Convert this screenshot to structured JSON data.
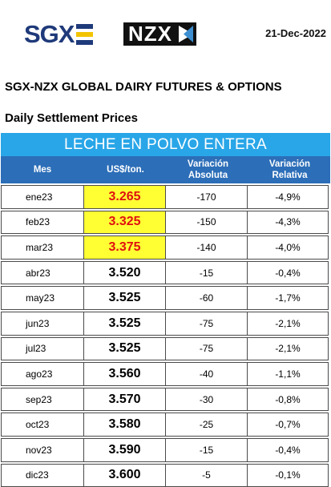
{
  "header": {
    "sgx_logo": "SGX",
    "nzx_logo": "NZX",
    "date": "21-Dec-2022"
  },
  "title": "SGX-NZX GLOBAL DAIRY FUTURES & OPTIONS",
  "subtitle": "Daily Settlement Prices",
  "table": {
    "banner": "LECHE EN POLVO ENTERA",
    "columns": {
      "mes": "Mes",
      "precio": "US$/ton.",
      "var_abs_1": "Variación",
      "var_abs_2": "Absoluta",
      "var_rel_1": "Variación",
      "var_rel_2": "Relativa"
    },
    "highlight_color": "#ffff33",
    "highlight_text_color": "#e01010",
    "rows": [
      {
        "mes": "ene23",
        "precio": "3.265",
        "abs": "-170",
        "rel": "-4,9%",
        "highlight": true
      },
      {
        "mes": "feb23",
        "precio": "3.325",
        "abs": "-150",
        "rel": "-4,3%",
        "highlight": true
      },
      {
        "mes": "mar23",
        "precio": "3.375",
        "abs": "-140",
        "rel": "-4,0%",
        "highlight": true
      },
      {
        "mes": "abr23",
        "precio": "3.520",
        "abs": "-15",
        "rel": "-0,4%",
        "highlight": false
      },
      {
        "mes": "may23",
        "precio": "3.525",
        "abs": "-60",
        "rel": "-1,7%",
        "highlight": false
      },
      {
        "mes": "jun23",
        "precio": "3.525",
        "abs": "-75",
        "rel": "-2,1%",
        "highlight": false
      },
      {
        "mes": "jul23",
        "precio": "3.525",
        "abs": "-75",
        "rel": "-2,1%",
        "highlight": false
      },
      {
        "mes": "ago23",
        "precio": "3.560",
        "abs": "-40",
        "rel": "-1,1%",
        "highlight": false
      },
      {
        "mes": "sep23",
        "precio": "3.570",
        "abs": "-30",
        "rel": "-0,8%",
        "highlight": false
      },
      {
        "mes": "oct23",
        "precio": "3.580",
        "abs": "-25",
        "rel": "-0,7%",
        "highlight": false
      },
      {
        "mes": "nov23",
        "precio": "3.590",
        "abs": "-15",
        "rel": "-0,4%",
        "highlight": false
      },
      {
        "mes": "dic23",
        "precio": "3.600",
        "abs": "-5",
        "rel": "-0,1%",
        "highlight": false
      }
    ]
  }
}
